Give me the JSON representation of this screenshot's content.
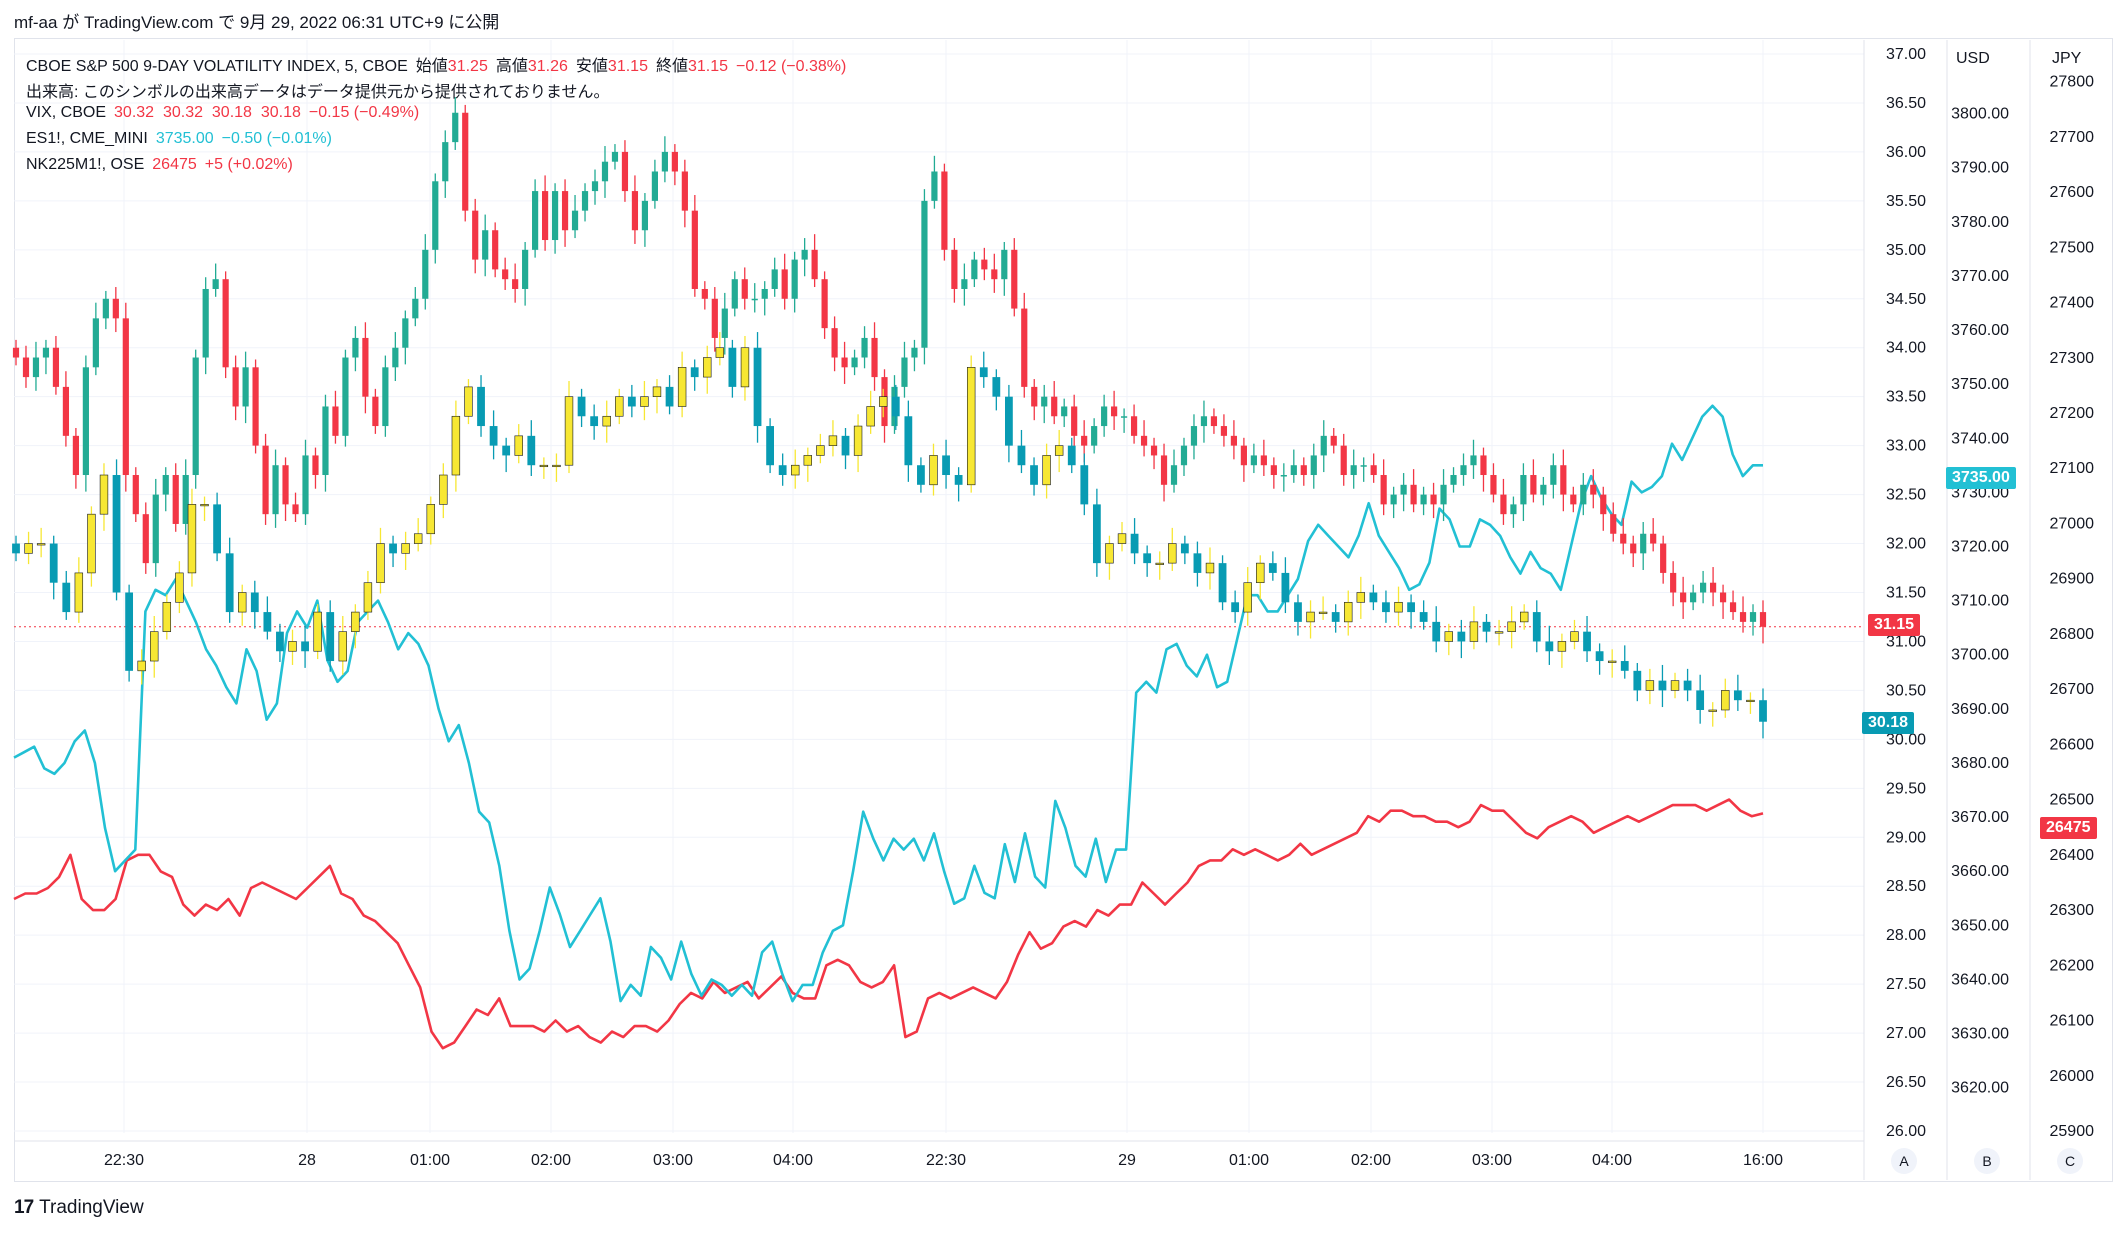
{
  "header": {
    "user": "mf-aa",
    "ga": "が",
    "site": "TradingView.com",
    "de": "で",
    "date": "9月 29, 2022 06:31 UTC+9",
    "published": "に公開"
  },
  "legend": {
    "main": {
      "symbol": "CBOE S&P 500 9-DAY VOLATILITY INDEX, 5, CBOE",
      "open_label": "始値",
      "open": "31.25",
      "high_label": "高値",
      "high": "31.26",
      "low_label": "安値",
      "low": "31.15",
      "close_label": "終値",
      "close": "31.15",
      "change": "−0.12 (−0.38%)"
    },
    "volume_note": "出来高: このシンボルの出来高データはデータ提供元から提供されておりません。",
    "vix": {
      "symbol": "VIX, CBOE",
      "values": "30.32  30.32  30.18  30.18",
      "change": "−0.15 (−0.49%)"
    },
    "es": {
      "symbol": "ES1!, CME_MINI",
      "value": "3735.00",
      "change": "−0.50 (−0.01%)"
    },
    "nk": {
      "symbol": "NK225M1!, OSE",
      "value": "26475",
      "change": "+5 (+0.02%)"
    }
  },
  "scales": {
    "a_head": "",
    "b_head": "USD",
    "c_head": "JPY",
    "btn_a": "A",
    "btn_b": "B",
    "btn_c": "C"
  },
  "badges": {
    "vix9d_last": "31.15",
    "vix_last": "30.18",
    "es_last": "3735.00",
    "nk_last": "26475"
  },
  "colors": {
    "up": "#22ab94",
    "down": "#f23645",
    "vix_up": "#f7e733",
    "vix_down": "#089bb3",
    "es_line": "#22c0d4",
    "nk_line": "#f23645",
    "grid": "#f0f3fa"
  },
  "footer": {
    "brand": "TradingView",
    "logo_mark": "17"
  },
  "chart_data": {
    "type": "candlestick+line",
    "title": "CBOE S&P 500 9-DAY VOLATILITY INDEX, 5, CBOE",
    "x_ticks": [
      "22:30",
      "28",
      "01:00",
      "02:00",
      "03:00",
      "04:00",
      "22:30",
      "29",
      "01:00",
      "02:00",
      "03:00",
      "04:00",
      "16:00"
    ],
    "axis_a": {
      "ylim": [
        26.0,
        37.0
      ],
      "ticks": [
        "26.00",
        "26.50",
        "27.00",
        "27.50",
        "28.00",
        "28.50",
        "29.00",
        "29.50",
        "30.00",
        "30.50",
        "31.00",
        "31.50",
        "32.00",
        "32.50",
        "33.00",
        "33.50",
        "34.00",
        "34.50",
        "35.00",
        "35.50",
        "36.00",
        "36.50",
        "37.00"
      ]
    },
    "axis_b": {
      "unit": "USD",
      "ylim": [
        3612,
        3811
      ],
      "ticks": [
        "3620.00",
        "3630.00",
        "3640.00",
        "3650.00",
        "3660.00",
        "3670.00",
        "3680.00",
        "3690.00",
        "3700.00",
        "3710.00",
        "3720.00",
        "3730.00",
        "3740.00",
        "3750.00",
        "3760.00",
        "3770.00",
        "3780.00",
        "3790.00",
        "3800.00"
      ]
    },
    "axis_c": {
      "unit": "JPY",
      "ylim": [
        25900,
        27850
      ],
      "ticks": [
        "25900",
        "26000",
        "26100",
        "26200",
        "26300",
        "26400",
        "26500",
        "26600",
        "26700",
        "26800",
        "26900",
        "27000",
        "27100",
        "27200",
        "27300",
        "27400",
        "27500",
        "27600",
        "27700",
        "27800"
      ]
    },
    "series": [
      {
        "name": "CBOE S&P 500 9-DAY VOLATILITY INDEX",
        "type": "candlestick",
        "axis": "A",
        "close": [
          33.9,
          33.7,
          33.9,
          34.0,
          33.6,
          33.1,
          32.7,
          33.8,
          34.3,
          34.5,
          34.3,
          32.7,
          32.3,
          31.8,
          32.5,
          32.7,
          32.2,
          32.7,
          33.9,
          34.6,
          34.7,
          33.8,
          33.4,
          33.8,
          33.0,
          32.3,
          32.8,
          32.4,
          32.3,
          32.9,
          32.7,
          33.4,
          33.1,
          33.9,
          34.1,
          33.5,
          33.2,
          33.8,
          34.0,
          34.3,
          34.5,
          35.0,
          35.7,
          36.1,
          36.4,
          35.4,
          34.9,
          35.2,
          34.8,
          34.7,
          34.6,
          35.0,
          35.6,
          35.1,
          35.6,
          35.2,
          35.4,
          35.6,
          35.7,
          35.9,
          36.0,
          35.6,
          35.2,
          35.5,
          35.8,
          36.0,
          35.8,
          35.4,
          34.6,
          34.5,
          34.1,
          34.4,
          34.7,
          34.5,
          34.5,
          34.6,
          34.8,
          34.5,
          34.9,
          35.0,
          34.7,
          34.2,
          33.9,
          33.8,
          33.9,
          34.1,
          33.7,
          33.2,
          33.6,
          33.9,
          34.0,
          35.5,
          35.8,
          35.0,
          34.6,
          34.7,
          34.9,
          34.8,
          34.7,
          35.0,
          34.4,
          33.6,
          33.4,
          33.5,
          33.3,
          33.4,
          33.1,
          33.0,
          33.2,
          33.4,
          33.3,
          33.3,
          33.1,
          33.0,
          32.9,
          32.6,
          32.8,
          33.0,
          33.2,
          33.3,
          33.2,
          33.1,
          33.0,
          32.8,
          32.9,
          32.8,
          32.7,
          32.7,
          32.8,
          32.7,
          32.9,
          33.1,
          33.0,
          32.7,
          32.8,
          32.8,
          32.7,
          32.4,
          32.5,
          32.6,
          32.4,
          32.5,
          32.4,
          32.6,
          32.7,
          32.8,
          32.9,
          32.7,
          32.5,
          32.3,
          32.4,
          32.7,
          32.5,
          32.6,
          32.8,
          32.5,
          32.4,
          32.6,
          32.5,
          32.3,
          32.1,
          32.0,
          31.9,
          32.1,
          32.0,
          31.7,
          31.5,
          31.4,
          31.5,
          31.6,
          31.5,
          31.4,
          31.3,
          31.2,
          31.3,
          31.15
        ]
      },
      {
        "name": "VIX",
        "type": "candlestick",
        "axis": "A",
        "close": [
          31.9,
          32.0,
          32.0,
          31.6,
          31.3,
          31.7,
          32.3,
          32.7,
          31.5,
          30.7,
          30.8,
          31.1,
          31.4,
          31.7,
          32.4,
          32.4,
          31.9,
          31.3,
          31.5,
          31.3,
          31.1,
          30.9,
          31.0,
          30.9,
          31.3,
          30.8,
          31.1,
          31.3,
          31.6,
          32.0,
          31.9,
          32.0,
          32.1,
          32.4,
          32.7,
          33.3,
          33.6,
          33.2,
          33.0,
          32.9,
          33.1,
          32.8,
          32.8,
          32.8,
          33.5,
          33.3,
          33.2,
          33.3,
          33.5,
          33.4,
          33.5,
          33.6,
          33.4,
          33.8,
          33.7,
          33.9,
          34.0,
          33.6,
          34.0,
          33.2,
          32.8,
          32.7,
          32.8,
          32.9,
          33.0,
          33.1,
          32.9,
          33.2,
          33.4,
          33.5,
          33.3,
          32.8,
          32.6,
          32.9,
          32.7,
          32.6,
          33.8,
          33.7,
          33.5,
          33.0,
          32.8,
          32.6,
          32.9,
          33.0,
          32.8,
          32.4,
          31.8,
          32.0,
          32.1,
          31.9,
          31.8,
          31.8,
          32.0,
          31.9,
          31.7,
          31.8,
          31.4,
          31.3,
          31.6,
          31.8,
          31.7,
          31.4,
          31.2,
          31.3,
          31.3,
          31.2,
          31.4,
          31.5,
          31.4,
          31.3,
          31.4,
          31.3,
          31.2,
          31.0,
          31.1,
          31.0,
          31.2,
          31.1,
          31.1,
          31.2,
          31.3,
          31.0,
          30.9,
          31.0,
          31.1,
          30.9,
          30.8,
          30.8,
          30.7,
          30.5,
          30.6,
          30.5,
          30.6,
          30.5,
          30.3,
          30.3,
          30.5,
          30.4,
          30.4,
          30.18
        ]
      },
      {
        "name": "ES1!",
        "type": "line",
        "axis": "B",
        "values": [
          3681,
          3682,
          3683,
          3679,
          3678,
          3680,
          3684,
          3686,
          3680,
          3668,
          3660,
          3662,
          3664,
          3708,
          3712,
          3711,
          3714,
          3710,
          3706,
          3701,
          3698,
          3694,
          3691,
          3701,
          3697,
          3688,
          3691,
          3704,
          3708,
          3705,
          3710,
          3699,
          3695,
          3697,
          3706,
          3708,
          3710,
          3706,
          3701,
          3704,
          3702,
          3698,
          3690,
          3684,
          3687,
          3680,
          3671,
          3669,
          3661,
          3649,
          3640,
          3642,
          3649,
          3657,
          3652,
          3646,
          3649,
          3652,
          3655,
          3647,
          3636,
          3639,
          3637,
          3646,
          3644,
          3640,
          3647,
          3641,
          3637,
          3640,
          3639,
          3637,
          3639,
          3637,
          3645,
          3647,
          3641,
          3636,
          3639,
          3639,
          3645,
          3649,
          3650,
          3660,
          3671,
          3666,
          3662,
          3666,
          3664,
          3666,
          3662,
          3667,
          3660,
          3654,
          3655,
          3661,
          3656,
          3655,
          3665,
          3658,
          3667,
          3659,
          3657,
          3673,
          3668,
          3661,
          3659,
          3666,
          3658,
          3664,
          3664,
          3693,
          3695,
          3693,
          3701,
          3702,
          3698,
          3696,
          3700,
          3694,
          3695,
          3703,
          3711,
          3711,
          3708,
          3708,
          3711,
          3714,
          3721,
          3724,
          3722,
          3720,
          3718,
          3722,
          3728,
          3722,
          3719,
          3716,
          3712,
          3713,
          3717,
          3727,
          3725,
          3720,
          3720,
          3725,
          3724,
          3722,
          3718,
          3715,
          3719,
          3716,
          3715,
          3712,
          3720,
          3728,
          3733,
          3729,
          3726,
          3724,
          3732,
          3730,
          3731,
          3733,
          3739,
          3736,
          3740,
          3744,
          3746,
          3744,
          3737,
          3733,
          3735,
          3735.0
        ]
      },
      {
        "name": "NK225M1!",
        "type": "line",
        "axis": "C",
        "values": [
          26320,
          26330,
          26330,
          26340,
          26360,
          26400,
          26320,
          26300,
          26300,
          26320,
          26390,
          26400,
          26400,
          26370,
          26360,
          26310,
          26290,
          26310,
          26300,
          26320,
          26290,
          26340,
          26350,
          26340,
          26330,
          26320,
          26340,
          26360,
          26380,
          26330,
          26320,
          26290,
          26280,
          26260,
          26240,
          26200,
          26160,
          26080,
          26050,
          26060,
          26090,
          26120,
          26110,
          26140,
          26090,
          26090,
          26090,
          26080,
          26100,
          26080,
          26090,
          26070,
          26060,
          26080,
          26070,
          26090,
          26090,
          26080,
          26100,
          26130,
          26150,
          26140,
          26170,
          26150,
          26160,
          26170,
          26140,
          26160,
          26180,
          26150,
          26140,
          26140,
          26200,
          26210,
          26200,
          26170,
          26160,
          26170,
          26200,
          26070,
          26080,
          26140,
          26150,
          26140,
          26150,
          26160,
          26150,
          26140,
          26170,
          26220,
          26260,
          26230,
          26240,
          26270,
          26280,
          26270,
          26300,
          26290,
          26310,
          26310,
          26350,
          26330,
          26310,
          26330,
          26350,
          26380,
          26390,
          26390,
          26410,
          26400,
          26410,
          26400,
          26390,
          26400,
          26420,
          26400,
          26410,
          26420,
          26430,
          26440,
          26470,
          26460,
          26480,
          26480,
          26470,
          26470,
          26460,
          26460,
          26450,
          26460,
          26490,
          26480,
          26480,
          26460,
          26440,
          26430,
          26450,
          26460,
          26470,
          26460,
          26440,
          26450,
          26460,
          26470,
          26460,
          26470,
          26480,
          26490,
          26490,
          26490,
          26480,
          26490,
          26500,
          26480,
          26470,
          26475
        ]
      }
    ]
  }
}
